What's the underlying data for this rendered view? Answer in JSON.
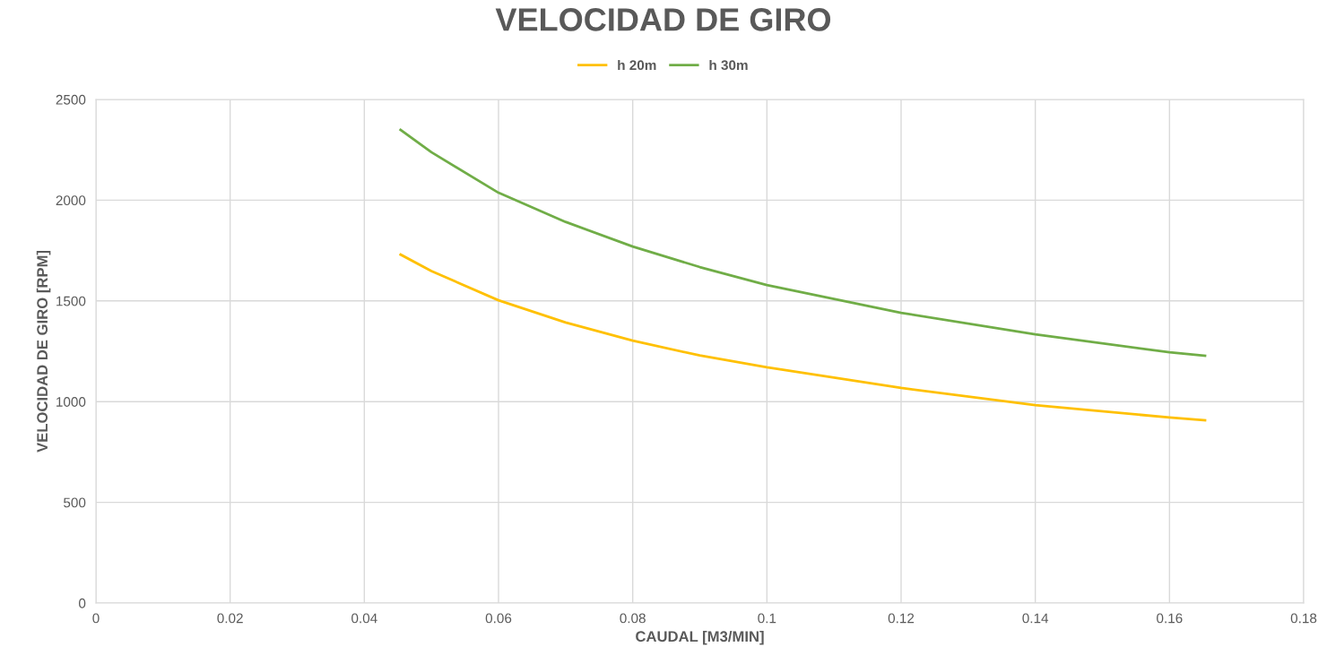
{
  "chart_data": {
    "type": "line",
    "title": "VELOCIDAD DE GIRO",
    "xlabel": "CAUDAL [M3/MIN]",
    "ylabel": "VELOCIDAD DE GIRO [RPM]",
    "xlim": [
      0,
      0.18
    ],
    "xticks": [
      0,
      0.02,
      0.04,
      0.06,
      0.08,
      0.1,
      0.12,
      0.14,
      0.16,
      0.18
    ],
    "ylim": [
      0,
      2500
    ],
    "yticks": [
      0,
      500,
      1000,
      1500,
      2000,
      2500
    ],
    "grid": true,
    "legend": "top",
    "marker": "none",
    "line_style": "solid",
    "series": [
      {
        "name": "h 20m",
        "color": "#ffc000",
        "x": [
          0.0454,
          0.05,
          0.06,
          0.07,
          0.08,
          0.09,
          0.1,
          0.12,
          0.14,
          0.16,
          0.1653
        ],
        "values": [
          1730,
          1648,
          1503,
          1393,
          1303,
          1229,
          1170,
          1068,
          983,
          921,
          907
        ]
      },
      {
        "name": "h 30m",
        "color": "#70ad47",
        "x": [
          0.0454,
          0.05,
          0.06,
          0.07,
          0.08,
          0.09,
          0.1,
          0.12,
          0.14,
          0.16,
          0.1653
        ],
        "values": [
          2349,
          2238,
          2037,
          1892,
          1770,
          1668,
          1579,
          1441,
          1334,
          1245,
          1228
        ]
      }
    ]
  }
}
